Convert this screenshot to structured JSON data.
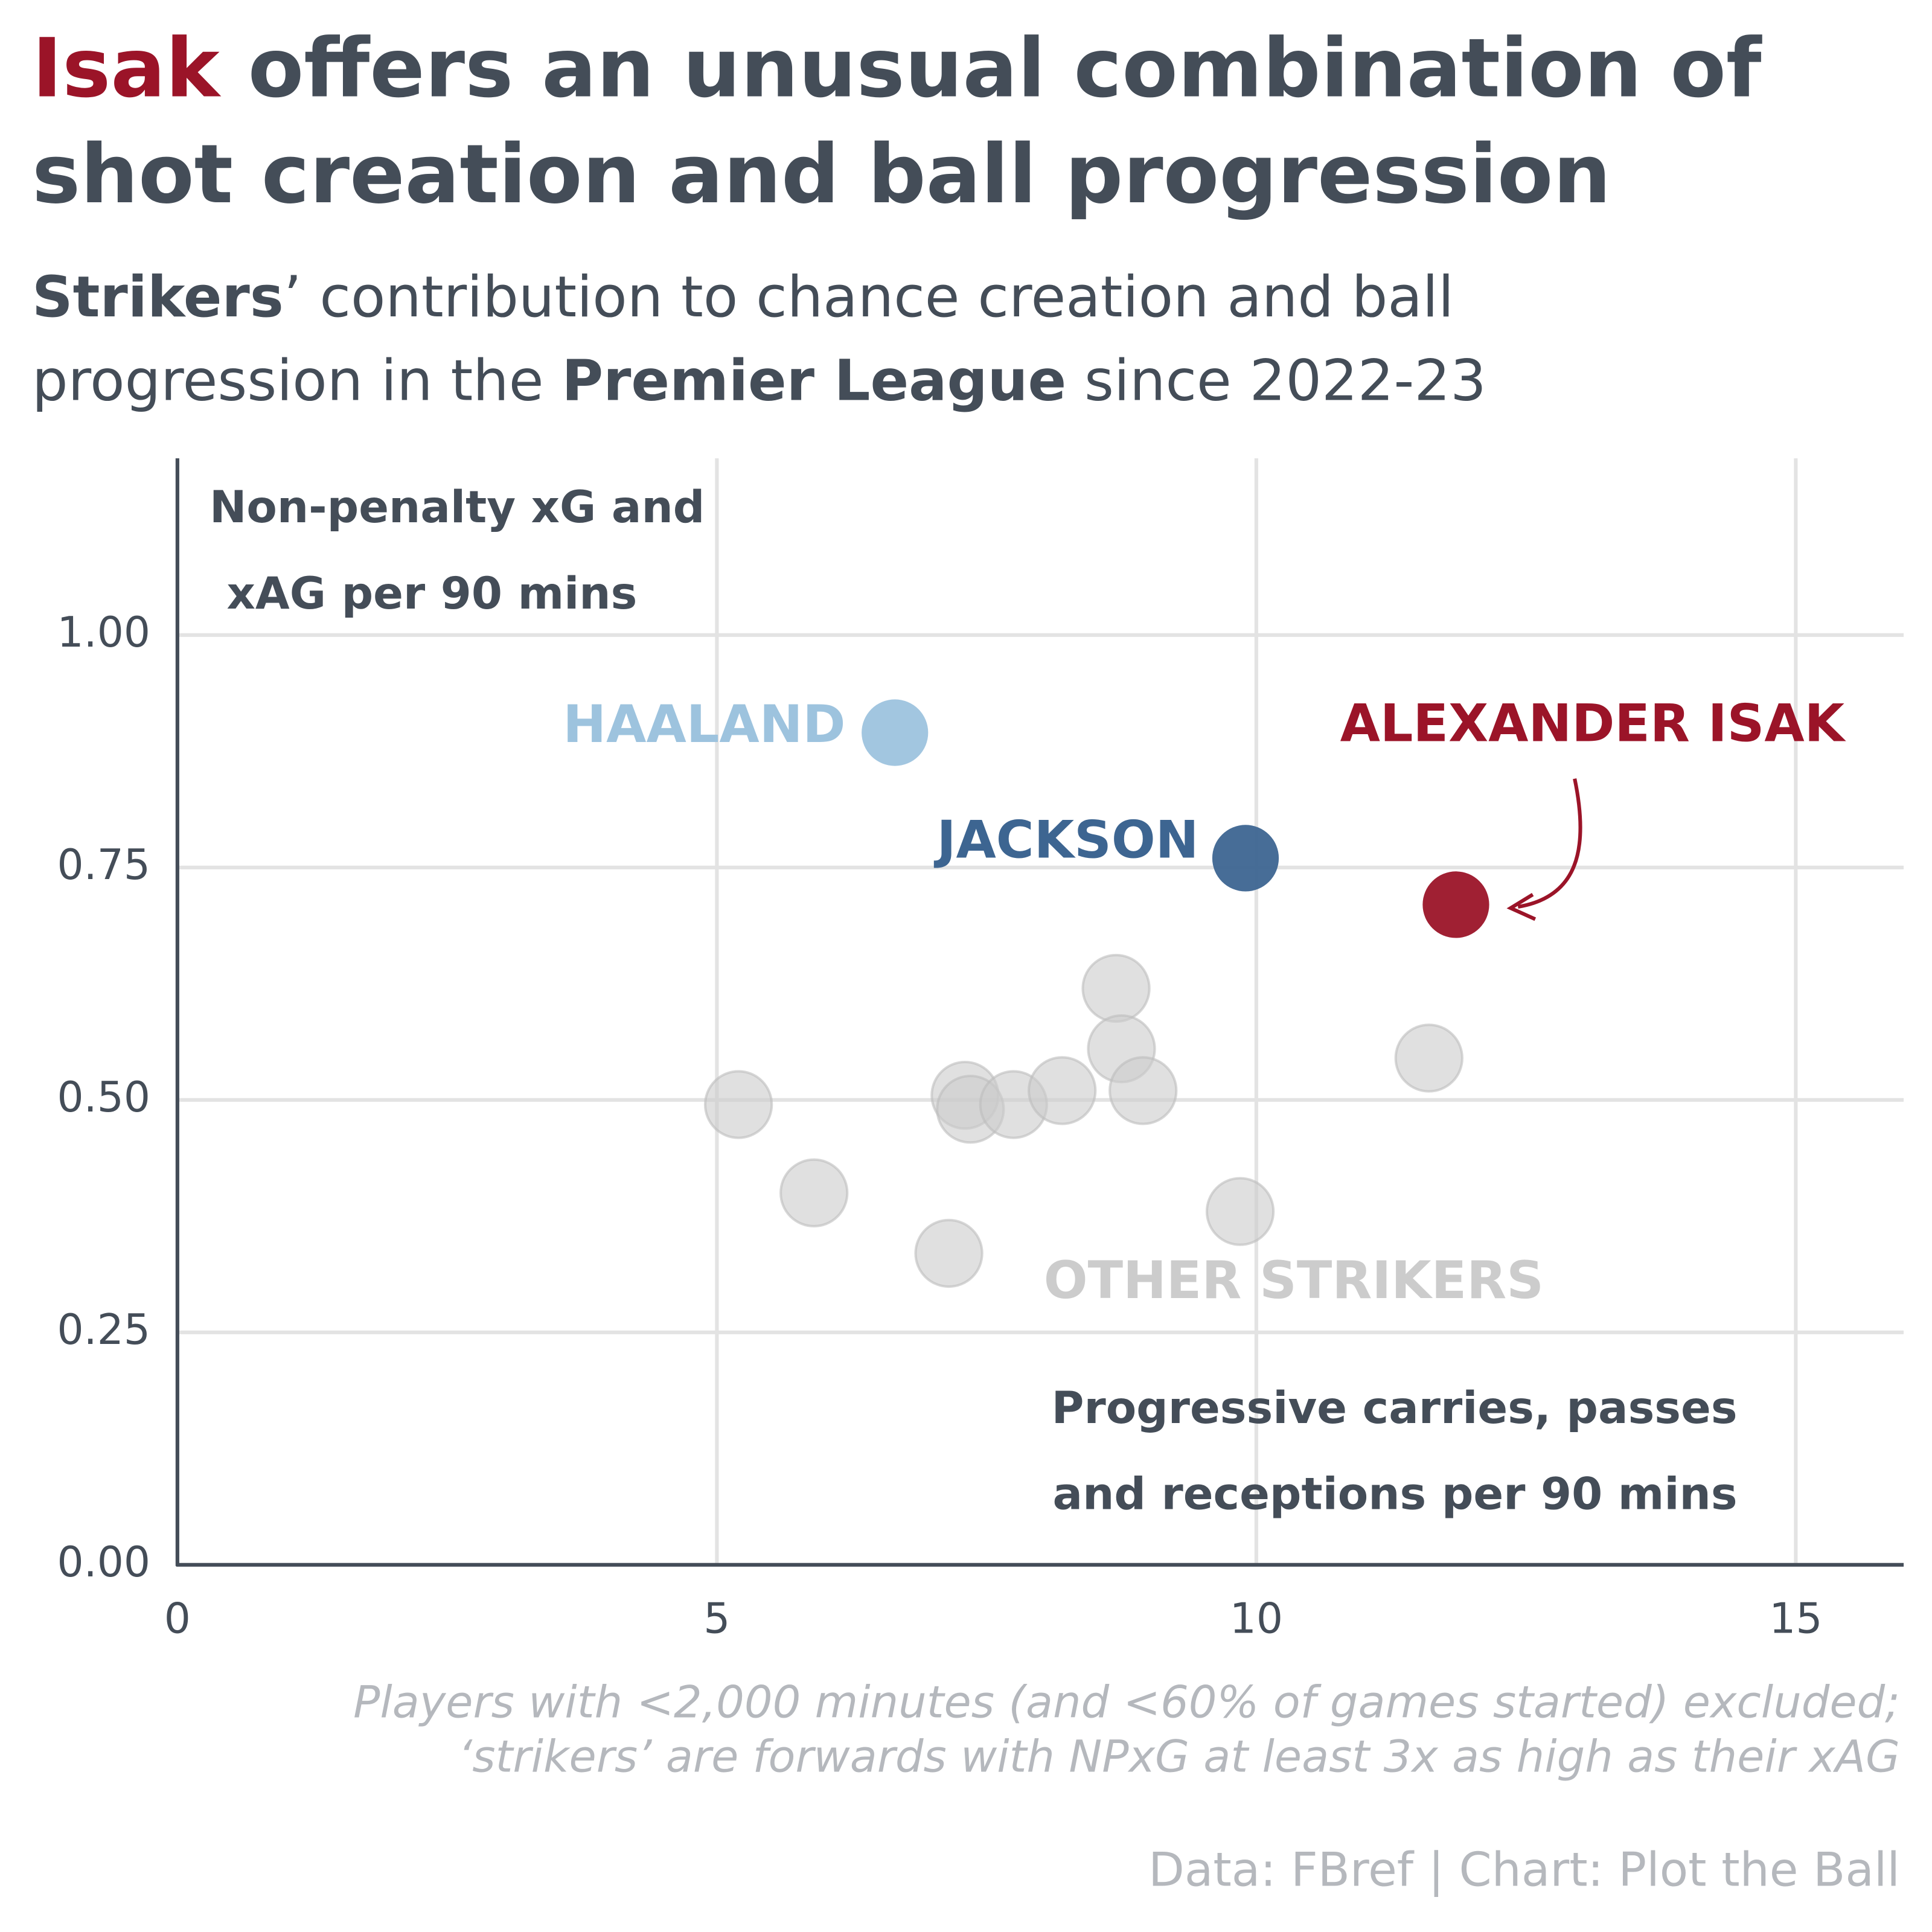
{
  "chart_data": {
    "type": "scatter",
    "title": {
      "highlight": "Isak",
      "lines": [
        "offers an unusual combination of",
        "shot creation and ball progression"
      ]
    },
    "subtitle": {
      "line1": [
        "Strikers",
        "’ contribution to chance creation and ball"
      ],
      "line2": [
        "progression in the ",
        "Premier League",
        " since 2022-23"
      ]
    },
    "y_label": [
      "Non-penalty xG and",
      "xAG per 90 mins"
    ],
    "x_label": [
      "Progressive carries, passes",
      "and receptions per 90 mins"
    ],
    "xlim": [
      0,
      16
    ],
    "ylim": [
      0,
      1.19
    ],
    "xticks": [
      0,
      5,
      10,
      15
    ],
    "yticks": [
      {
        "value": 0,
        "label": "0.00"
      },
      {
        "value": 0.25,
        "label": "0.25"
      },
      {
        "value": 0.5,
        "label": "0.50"
      },
      {
        "value": 0.75,
        "label": "0.75"
      },
      {
        "value": 1,
        "label": "1.00"
      }
    ],
    "grid": true,
    "series": [
      {
        "name": "OTHER STRIKERS",
        "color": "#cccccc",
        "x": [
          5.2,
          5.9,
          7.15,
          7.3,
          7.35,
          7.75,
          8.2,
          8.7,
          8.75,
          8.95,
          9.85,
          11.6
        ],
        "values": [
          0.495,
          0.4,
          0.335,
          0.505,
          0.49,
          0.495,
          0.51,
          0.62,
          0.555,
          0.51,
          0.38,
          0.545
        ]
      },
      {
        "name": "HAALAND",
        "color": "#9dc3de",
        "x": [
          6.65
        ],
        "values": [
          0.895
        ]
      },
      {
        "name": "JACKSON",
        "color": "#3d6591",
        "x": [
          9.9
        ],
        "values": [
          0.76
        ]
      },
      {
        "name": "ALEXANDER ISAK",
        "color": "#9b1428",
        "x": [
          11.85
        ],
        "values": [
          0.71
        ]
      }
    ],
    "footnote": [
      "Players with <2,000 minutes (and <60% of games started) excluded;",
      "‘strikers’ are forwards with NPxG at least 3x as high as their xAG"
    ],
    "source": "Data: FBref | Chart: Plot the Ball"
  }
}
